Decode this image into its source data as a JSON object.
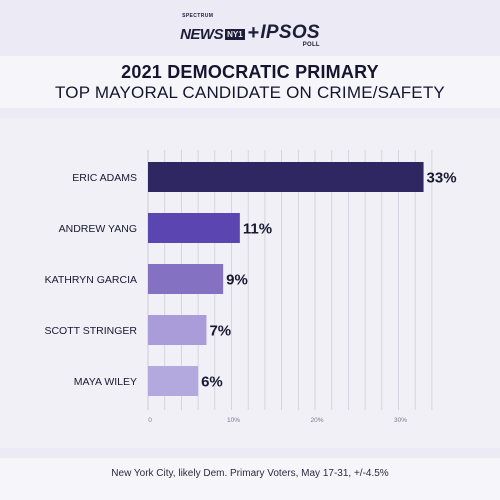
{
  "logo": {
    "spectrum": "SPECTRUM",
    "news": "NEWS",
    "ny": "NY1",
    "plus": "+",
    "ipsos": "IPSOS",
    "poll": "POLL"
  },
  "header": {
    "title": "2021 DEMOCRATIC PRIMARY",
    "subtitle": "TOP MAYORAL CANDIDATE ON CRIME/SAFETY"
  },
  "footer": {
    "note": "New York City, likely Dem. Primary Voters, May 17-31, +/-4.5%"
  },
  "chart_data": {
    "type": "bar",
    "orientation": "horizontal",
    "categories": [
      "ERIC ADAMS",
      "ANDREW YANG",
      "KATHRYN GARCIA",
      "SCOTT STRINGER",
      "MAYA WILEY"
    ],
    "values": [
      33,
      11,
      9,
      7,
      6
    ],
    "data_labels": [
      "33%",
      "11%",
      "9%",
      "7%",
      "6%"
    ],
    "colors": [
      "#2e2761",
      "#5b46b1",
      "#8471c1",
      "#a99cd9",
      "#b4a9de"
    ],
    "xlim": [
      0,
      35
    ],
    "x_ticks": [
      0,
      10,
      20,
      30
    ],
    "x_tick_labels": [
      "0",
      "10%",
      "20%",
      "30%"
    ],
    "grid": true
  }
}
